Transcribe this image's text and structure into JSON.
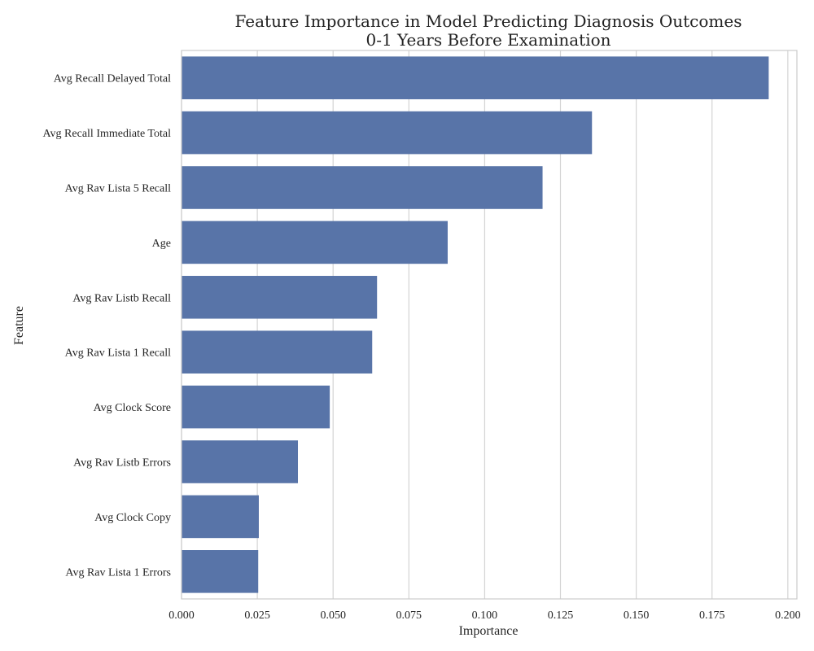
{
  "chart_data": {
    "type": "bar",
    "orientation": "horizontal",
    "title": "Feature Importance in Model Predicting Diagnosis Outcomes\n0-1 Years Before Examination",
    "xlabel": "Importance",
    "ylabel": "Feature",
    "xlim": [
      0,
      0.203
    ],
    "xticks": [
      "0.000",
      "0.025",
      "0.050",
      "0.075",
      "0.100",
      "0.125",
      "0.150",
      "0.175",
      "0.200"
    ],
    "grid": true,
    "bar_color": "#5874a8",
    "categories": [
      "Avg Recall Delayed Total",
      "Avg Recall Immediate Total",
      "Avg Rav Lista 5 Recall",
      "Age",
      "Avg Rav Listb Recall",
      "Avg Rav Lista 1 Recall",
      "Avg Clock Score",
      "Avg Rav Listb Errors",
      "Avg Clock Copy",
      "Avg Rav Lista 1 Errors"
    ],
    "values": [
      0.1937,
      0.1354,
      0.1191,
      0.0878,
      0.0645,
      0.0629,
      0.0489,
      0.0384,
      0.0255,
      0.0253
    ]
  }
}
